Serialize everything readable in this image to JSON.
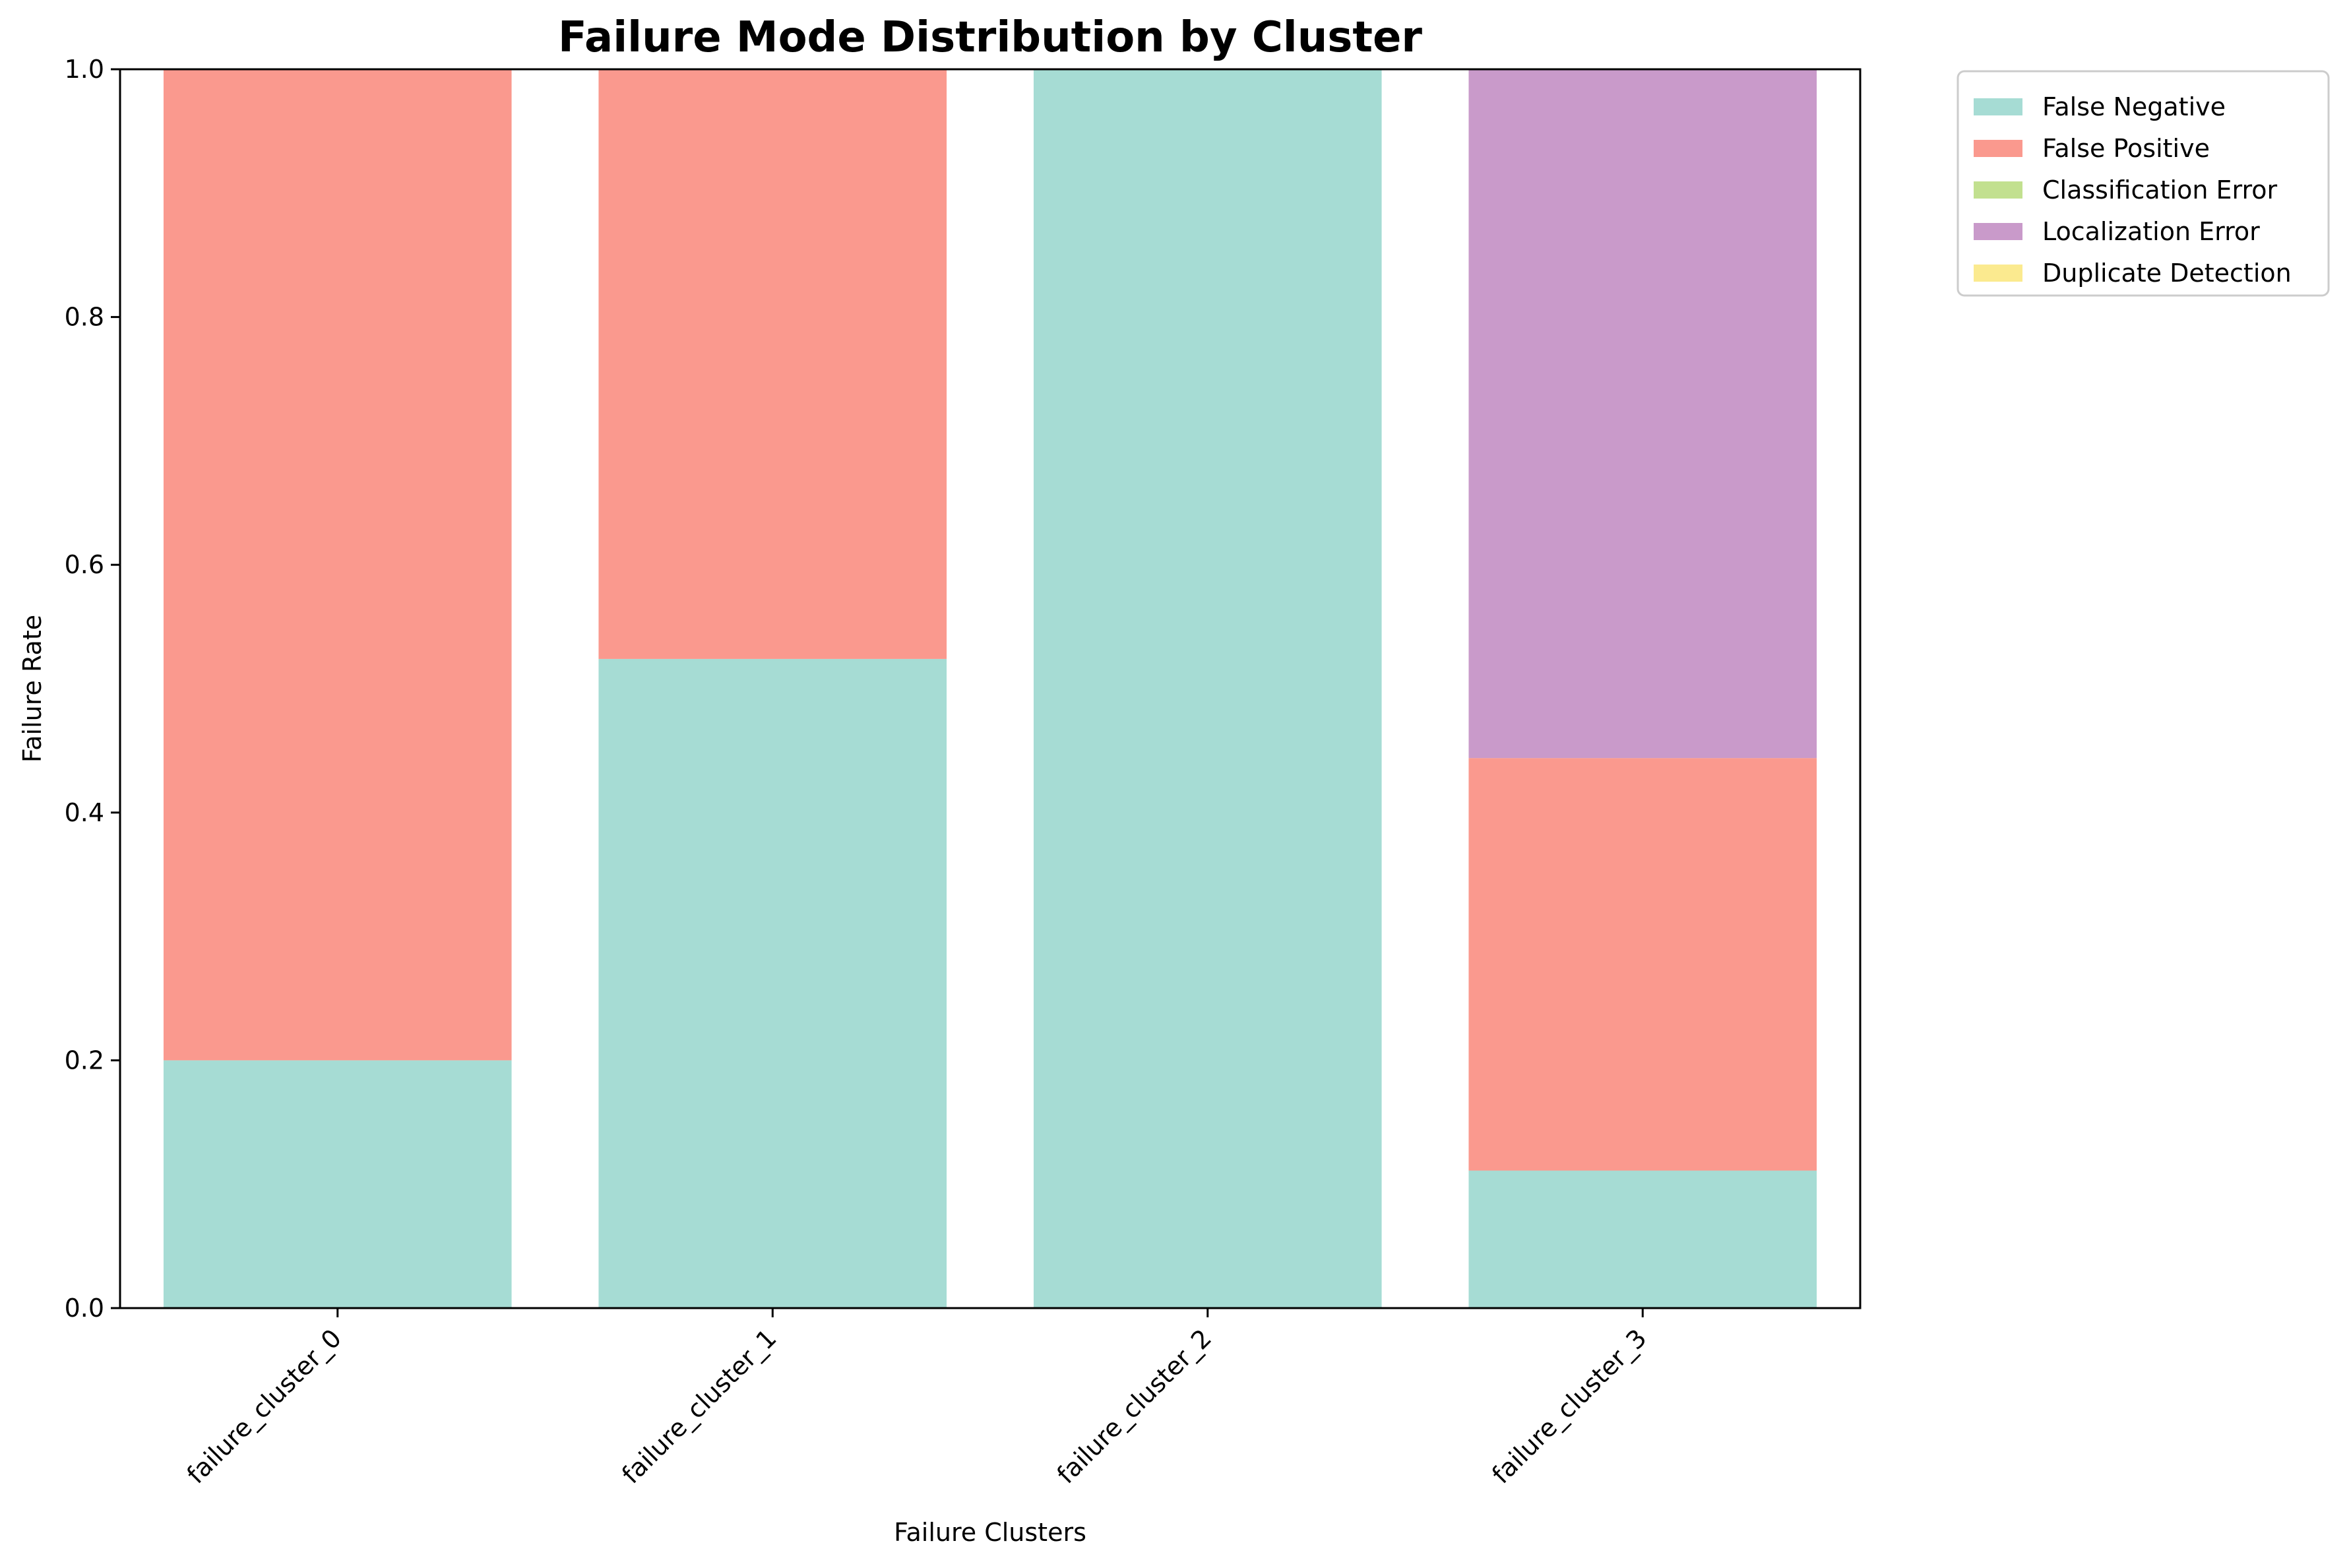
{
  "chart_data": {
    "type": "bar",
    "stacked": true,
    "title": "Failure Mode Distribution by Cluster",
    "xlabel": "Failure Clusters",
    "ylabel": "Failure Rate",
    "categories": [
      "failure_cluster_0",
      "failure_cluster_1",
      "failure_cluster_2",
      "failure_cluster_3"
    ],
    "ylim": [
      0,
      1.0
    ],
    "yticks": [
      "0.0",
      "0.2",
      "0.4",
      "0.6",
      "0.8",
      "1.0"
    ],
    "series": [
      {
        "name": "False Negative",
        "color": "#a6dcd4",
        "values": [
          0.2,
          0.524,
          1.0,
          0.111
        ]
      },
      {
        "name": "False Positive",
        "color": "#fa998e",
        "values": [
          0.8,
          0.476,
          0.0,
          0.333
        ]
      },
      {
        "name": "Classification Error",
        "color": "#c2e08f",
        "values": [
          0.0,
          0.0,
          0.0,
          0.0
        ]
      },
      {
        "name": "Localization Error",
        "color": "#c99aca",
        "values": [
          0.0,
          0.0,
          0.0,
          0.556
        ]
      },
      {
        "name": "Duplicate Detection",
        "color": "#fbea8f",
        "values": [
          0.0,
          0.0,
          0.0,
          0.0
        ]
      }
    ],
    "grid": false,
    "legend_position": "outside top-right"
  }
}
